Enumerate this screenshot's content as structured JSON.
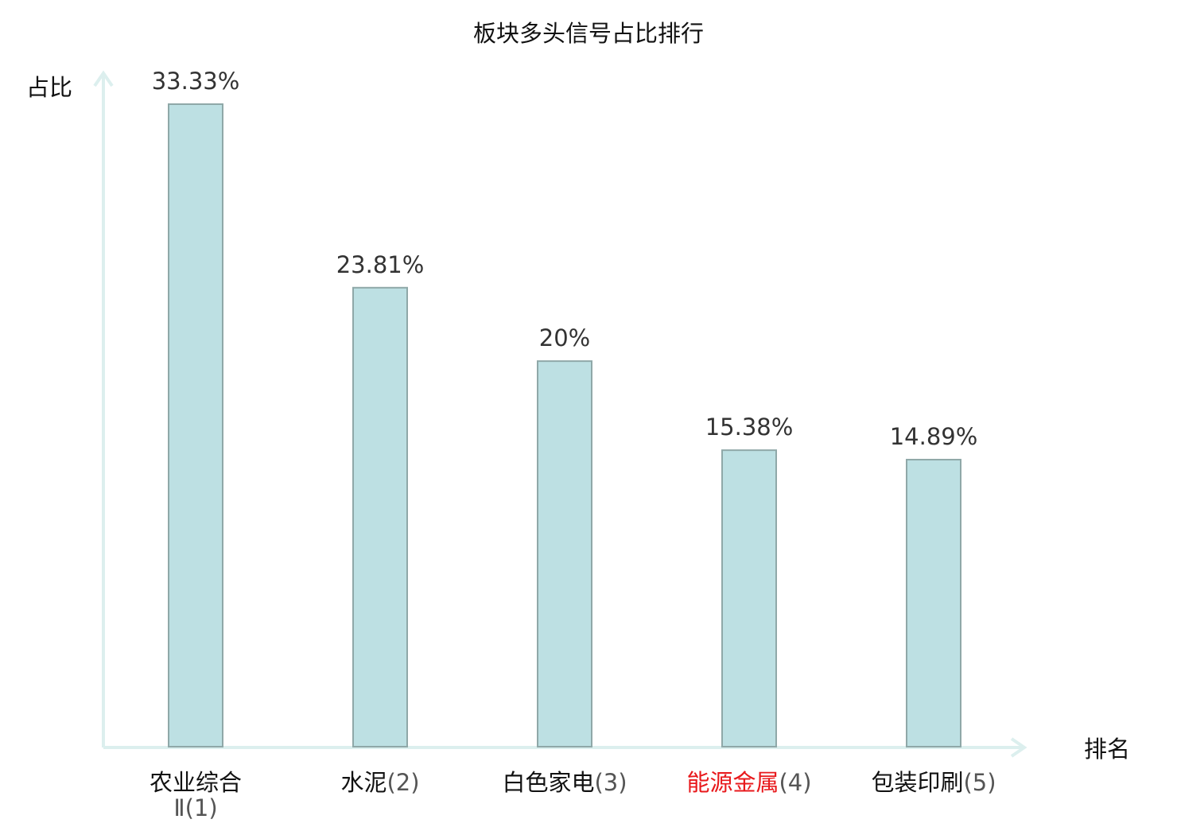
{
  "chart_data": {
    "type": "bar",
    "title": "板块多头信号占比排行",
    "ylabel": "占比",
    "xlabel": "排名",
    "ylim": [
      0,
      35
    ],
    "categories": [
      {
        "name": "农业综合Ⅱ",
        "rank": "(1)",
        "highlight": false
      },
      {
        "name": "水泥",
        "rank": "(2)",
        "highlight": false
      },
      {
        "name": "白色家电",
        "rank": "(3)",
        "highlight": false
      },
      {
        "name": "能源金属",
        "rank": "(4)",
        "highlight": true
      },
      {
        "name": "包装印刷",
        "rank": "(5)",
        "highlight": false
      }
    ],
    "values": [
      33.33,
      23.81,
      20,
      15.38,
      14.89
    ],
    "value_labels": [
      "33.33%",
      "23.81%",
      "20%",
      "15.38%",
      "14.89%"
    ],
    "colors": {
      "bar_fill": "#bde0e3",
      "bar_stroke": "#8fa8a8",
      "axis": "#dcefee",
      "highlight_text": "#e8191c",
      "normal_text": "#111111",
      "rank_text": "#555555"
    }
  }
}
